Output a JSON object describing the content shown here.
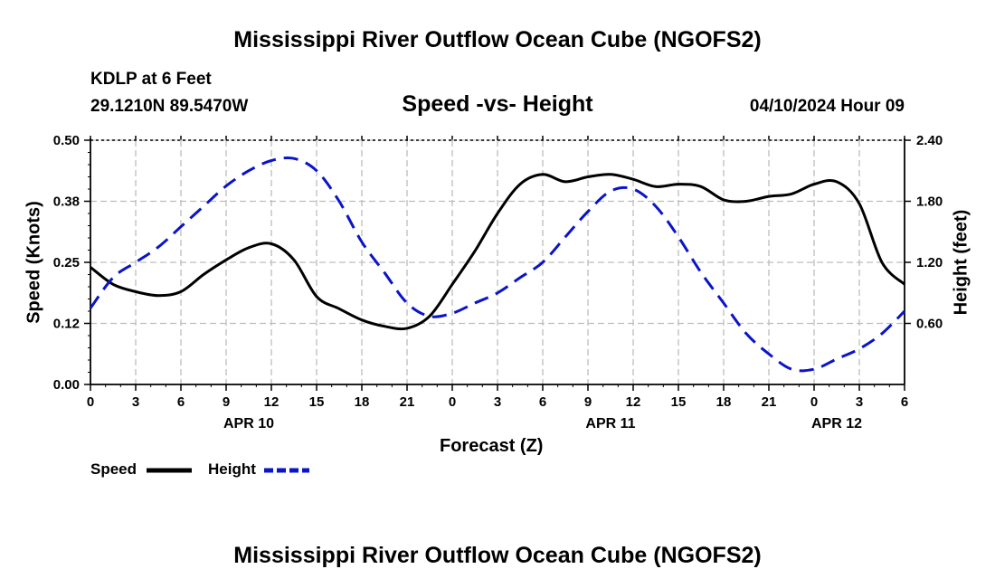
{
  "title": "Mississippi River Outflow Ocean Cube (NGOFS2)",
  "station": {
    "name": "KDLP at 6 Feet",
    "coords": "29.1210N  89.5470W"
  },
  "subtitle": "Speed -vs- Height",
  "datetime": "04/10/2024 Hour 09",
  "legend": {
    "speed_label": "Speed",
    "height_label": "Height"
  },
  "colors": {
    "speed": "#000000",
    "height": "#0a14c8",
    "grid": "#bdbdbd"
  },
  "chart_data": {
    "type": "line",
    "title": "Speed -vs- Height",
    "xlabel": "Forecast (Z)",
    "ylabel": "Speed (Knots)",
    "y2label": "Height (feet)",
    "x_range_hours": [
      0,
      54
    ],
    "x_ticks": [
      "0",
      "3",
      "6",
      "9",
      "12",
      "15",
      "18",
      "21",
      "0",
      "3",
      "6",
      "9",
      "12",
      "15",
      "18",
      "21",
      "0",
      "3",
      "6"
    ],
    "date_labels": [
      {
        "label": "APR 10",
        "hour": 10.5
      },
      {
        "label": "APR 11",
        "hour": 34.5
      },
      {
        "label": "APR 12",
        "hour": 49.5
      }
    ],
    "ylim": [
      0,
      0.5
    ],
    "y_ticks": [
      "0.00",
      "0.12",
      "0.25",
      "0.38",
      "0.50"
    ],
    "y2lim": [
      0,
      2.4
    ],
    "y2_ticks": [
      "0.60",
      "1.20",
      "1.80",
      "2.40"
    ],
    "grid": true,
    "series": [
      {
        "name": "Speed",
        "axis": "left",
        "style": "solid",
        "x": [
          0,
          1.5,
          3,
          4.5,
          6,
          7.5,
          9,
          10.5,
          12,
          13.5,
          15,
          16.5,
          18,
          19.5,
          21,
          22.5,
          24,
          25.5,
          27,
          28.5,
          30,
          31.5,
          33,
          34.5,
          36,
          37.5,
          39,
          40.5,
          42,
          43.5,
          45,
          46.5,
          48,
          49.5,
          51,
          52.5,
          54
        ],
        "values": [
          0.24,
          0.205,
          0.19,
          0.182,
          0.19,
          0.225,
          0.255,
          0.28,
          0.288,
          0.255,
          0.18,
          0.155,
          0.132,
          0.119,
          0.115,
          0.14,
          0.205,
          0.273,
          0.35,
          0.41,
          0.43,
          0.415,
          0.425,
          0.43,
          0.42,
          0.405,
          0.41,
          0.405,
          0.378,
          0.375,
          0.385,
          0.39,
          0.41,
          0.415,
          0.37,
          0.25,
          0.205
        ]
      },
      {
        "name": "Height",
        "axis": "right",
        "style": "dashed",
        "x": [
          0,
          1.5,
          3,
          4.5,
          6,
          7.5,
          9,
          10.5,
          12,
          13.5,
          15,
          16.5,
          18,
          19.5,
          21,
          22.5,
          24,
          25.5,
          27,
          28.5,
          30,
          31.5,
          33,
          34.5,
          36,
          37.5,
          39,
          40.5,
          42,
          43.5,
          45,
          46.5,
          48,
          49.5,
          51,
          52.5,
          54
        ],
        "values": [
          0.75,
          1.05,
          1.2,
          1.35,
          1.55,
          1.75,
          1.95,
          2.1,
          2.2,
          2.22,
          2.1,
          1.8,
          1.4,
          1.1,
          0.8,
          0.67,
          0.7,
          0.8,
          0.9,
          1.05,
          1.2,
          1.45,
          1.7,
          1.9,
          1.92,
          1.75,
          1.45,
          1.1,
          0.8,
          0.5,
          0.3,
          0.15,
          0.15,
          0.25,
          0.35,
          0.5,
          0.72
        ]
      }
    ]
  }
}
